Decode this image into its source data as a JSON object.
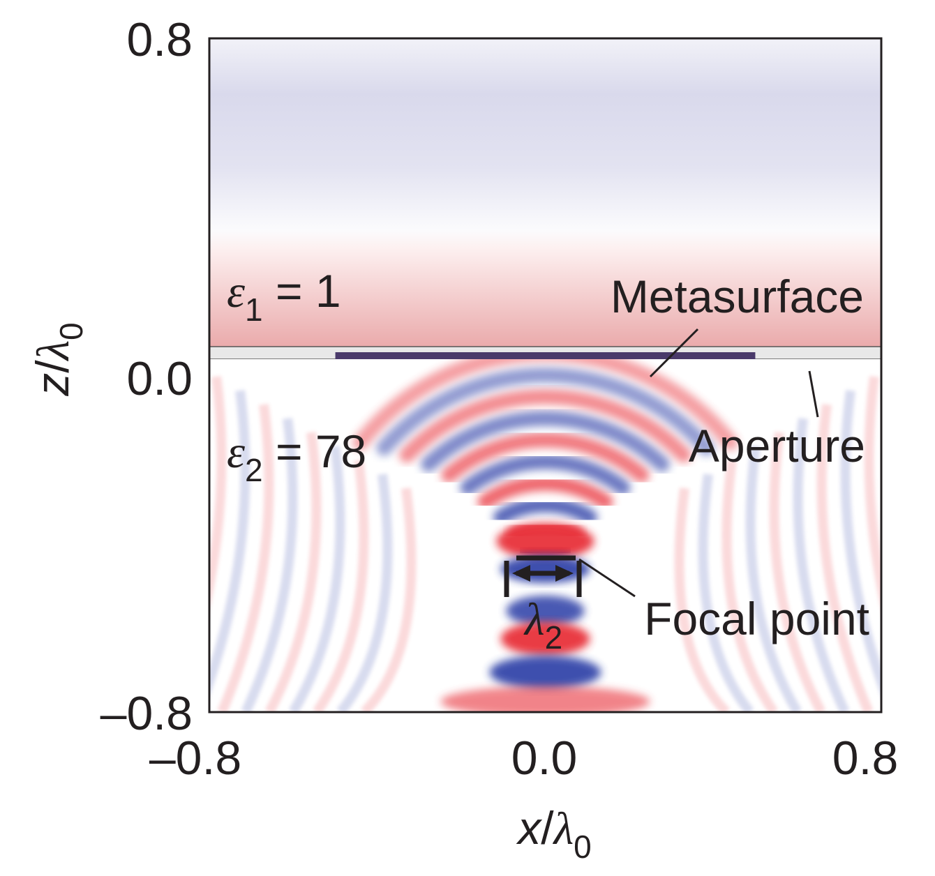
{
  "chart_data": {
    "type": "heatmap",
    "title": "",
    "xlabel": {
      "var": "x",
      "sep": "/",
      "lambda": "λ",
      "sub": "0"
    },
    "ylabel": {
      "var": "z",
      "sep": "/",
      "lambda": "λ",
      "sub": "0"
    },
    "xlim": [
      -0.8,
      0.8
    ],
    "ylim": [
      -0.8,
      0.8
    ],
    "x_ticks": [
      "–0.8",
      "0.0",
      "0.8"
    ],
    "y_ticks": [
      "0.8",
      "0.0",
      "–0.8"
    ],
    "grid": false,
    "colors": {
      "positive": "#e8303a",
      "negative": "#2b3ea6",
      "zero": "#ffffff",
      "frame": "#231f20"
    },
    "regions": {
      "upper": {
        "symbol": "ε",
        "sub": "1",
        "rest": " = 1"
      },
      "lower": {
        "symbol": "ε",
        "sub": "2",
        "rest": " = 78"
      }
    },
    "interface_z": 0.0,
    "metasurface_x": [
      -0.5,
      0.5
    ],
    "focal_point": {
      "x": 0.0,
      "z": -0.51
    },
    "annotations": {
      "metasurface": "Metasurface",
      "aperture": "Aperture",
      "focal_point": "Focal point",
      "focal_width": {
        "lambda": "λ",
        "sub": "2"
      }
    }
  }
}
